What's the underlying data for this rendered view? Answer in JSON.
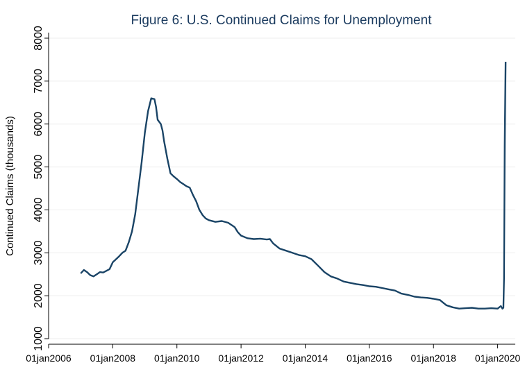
{
  "chart_data": {
    "type": "line",
    "title": "Figure 6: U.S. Continued Claims for Unemployment",
    "xlabel": "",
    "ylabel": "Continued Claims (thousands)",
    "xlim": [
      2006.0,
      2020.55
    ],
    "ylim": [
      1000,
      8000
    ],
    "x_ticks": [
      {
        "value": 2006,
        "label": "01jan2006"
      },
      {
        "value": 2008,
        "label": "01jan2008"
      },
      {
        "value": 2010,
        "label": "01jan2010"
      },
      {
        "value": 2012,
        "label": "01jan2012"
      },
      {
        "value": 2014,
        "label": "01jan2014"
      },
      {
        "value": 2016,
        "label": "01jan2016"
      },
      {
        "value": 2018,
        "label": "01jan2018"
      },
      {
        "value": 2020,
        "label": "01jan2020"
      }
    ],
    "y_ticks": [
      1000,
      2000,
      3000,
      4000,
      5000,
      6000,
      7000,
      8000
    ],
    "grid": true,
    "series": [
      {
        "name": "Continued Claims",
        "color": "#1a4466",
        "x": [
          2007.0,
          2007.1,
          2007.2,
          2007.3,
          2007.4,
          2007.5,
          2007.6,
          2007.7,
          2007.8,
          2007.9,
          2008.0,
          2008.1,
          2008.2,
          2008.3,
          2008.4,
          2008.5,
          2008.6,
          2008.7,
          2008.8,
          2008.9,
          2009.0,
          2009.1,
          2009.2,
          2009.3,
          2009.35,
          2009.4,
          2009.45,
          2009.5,
          2009.55,
          2009.6,
          2009.7,
          2009.8,
          2009.9,
          2010.0,
          2010.1,
          2010.2,
          2010.3,
          2010.4,
          2010.5,
          2010.6,
          2010.7,
          2010.8,
          2010.9,
          2011.0,
          2011.2,
          2011.4,
          2011.6,
          2011.8,
          2011.9,
          2012.0,
          2012.2,
          2012.4,
          2012.6,
          2012.8,
          2012.9,
          2013.0,
          2013.2,
          2013.4,
          2013.6,
          2013.8,
          2014.0,
          2014.2,
          2014.4,
          2014.6,
          2014.8,
          2015.0,
          2015.2,
          2015.4,
          2015.6,
          2015.8,
          2016.0,
          2016.2,
          2016.4,
          2016.6,
          2016.8,
          2017.0,
          2017.2,
          2017.4,
          2017.6,
          2017.8,
          2018.0,
          2018.2,
          2018.4,
          2018.6,
          2018.8,
          2019.0,
          2019.2,
          2019.4,
          2019.6,
          2019.8,
          2020.0,
          2020.1,
          2020.15,
          2020.18,
          2020.2,
          2020.22,
          2020.25
        ],
        "values": [
          2520,
          2600,
          2550,
          2480,
          2450,
          2500,
          2550,
          2540,
          2580,
          2620,
          2780,
          2850,
          2920,
          3000,
          3050,
          3250,
          3500,
          3900,
          4500,
          5100,
          5800,
          6300,
          6600,
          6580,
          6400,
          6100,
          6050,
          6000,
          5850,
          5600,
          5200,
          4850,
          4780,
          4720,
          4650,
          4600,
          4550,
          4520,
          4350,
          4200,
          4000,
          3880,
          3800,
          3760,
          3720,
          3740,
          3700,
          3600,
          3480,
          3400,
          3340,
          3320,
          3330,
          3310,
          3320,
          3220,
          3100,
          3050,
          3000,
          2950,
          2920,
          2850,
          2700,
          2550,
          2450,
          2400,
          2330,
          2300,
          2270,
          2250,
          2220,
          2210,
          2180,
          2150,
          2120,
          2050,
          2020,
          1980,
          1960,
          1950,
          1930,
          1900,
          1780,
          1730,
          1700,
          1710,
          1720,
          1700,
          1700,
          1710,
          1700,
          1760,
          1700,
          1720,
          2400,
          5500,
          7450
        ]
      }
    ]
  }
}
